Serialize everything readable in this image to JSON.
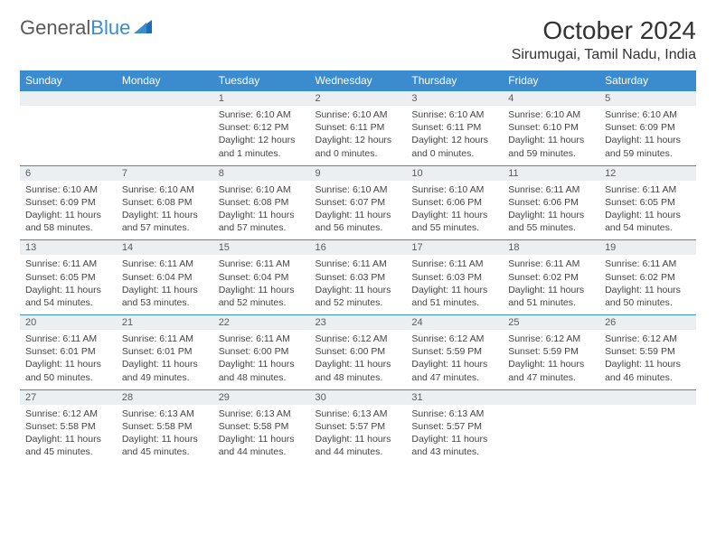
{
  "brand": {
    "part1": "General",
    "part2": "Blue"
  },
  "title": "October 2024",
  "location": "Sirumugai, Tamil Nadu, India",
  "colors": {
    "header_bg": "#3a8ccf",
    "header_text": "#ffffff",
    "daynum_bg": "#eceff1",
    "daynum_text": "#5a5a5a",
    "body_text": "#444444",
    "border": "#3a8ccf",
    "background": "#ffffff"
  },
  "typography": {
    "title_fontsize": 28,
    "location_fontsize": 16,
    "header_fontsize": 12,
    "cell_fontsize": 10.5
  },
  "day_headers": [
    "Sunday",
    "Monday",
    "Tuesday",
    "Wednesday",
    "Thursday",
    "Friday",
    "Saturday"
  ],
  "weeks": [
    [
      null,
      null,
      {
        "n": "1",
        "sr": "Sunrise: 6:10 AM",
        "ss": "Sunset: 6:12 PM",
        "dl1": "Daylight: 12 hours",
        "dl2": "and 1 minutes."
      },
      {
        "n": "2",
        "sr": "Sunrise: 6:10 AM",
        "ss": "Sunset: 6:11 PM",
        "dl1": "Daylight: 12 hours",
        "dl2": "and 0 minutes."
      },
      {
        "n": "3",
        "sr": "Sunrise: 6:10 AM",
        "ss": "Sunset: 6:11 PM",
        "dl1": "Daylight: 12 hours",
        "dl2": "and 0 minutes."
      },
      {
        "n": "4",
        "sr": "Sunrise: 6:10 AM",
        "ss": "Sunset: 6:10 PM",
        "dl1": "Daylight: 11 hours",
        "dl2": "and 59 minutes."
      },
      {
        "n": "5",
        "sr": "Sunrise: 6:10 AM",
        "ss": "Sunset: 6:09 PM",
        "dl1": "Daylight: 11 hours",
        "dl2": "and 59 minutes."
      }
    ],
    [
      {
        "n": "6",
        "sr": "Sunrise: 6:10 AM",
        "ss": "Sunset: 6:09 PM",
        "dl1": "Daylight: 11 hours",
        "dl2": "and 58 minutes."
      },
      {
        "n": "7",
        "sr": "Sunrise: 6:10 AM",
        "ss": "Sunset: 6:08 PM",
        "dl1": "Daylight: 11 hours",
        "dl2": "and 57 minutes."
      },
      {
        "n": "8",
        "sr": "Sunrise: 6:10 AM",
        "ss": "Sunset: 6:08 PM",
        "dl1": "Daylight: 11 hours",
        "dl2": "and 57 minutes."
      },
      {
        "n": "9",
        "sr": "Sunrise: 6:10 AM",
        "ss": "Sunset: 6:07 PM",
        "dl1": "Daylight: 11 hours",
        "dl2": "and 56 minutes."
      },
      {
        "n": "10",
        "sr": "Sunrise: 6:10 AM",
        "ss": "Sunset: 6:06 PM",
        "dl1": "Daylight: 11 hours",
        "dl2": "and 55 minutes."
      },
      {
        "n": "11",
        "sr": "Sunrise: 6:11 AM",
        "ss": "Sunset: 6:06 PM",
        "dl1": "Daylight: 11 hours",
        "dl2": "and 55 minutes."
      },
      {
        "n": "12",
        "sr": "Sunrise: 6:11 AM",
        "ss": "Sunset: 6:05 PM",
        "dl1": "Daylight: 11 hours",
        "dl2": "and 54 minutes."
      }
    ],
    [
      {
        "n": "13",
        "sr": "Sunrise: 6:11 AM",
        "ss": "Sunset: 6:05 PM",
        "dl1": "Daylight: 11 hours",
        "dl2": "and 54 minutes."
      },
      {
        "n": "14",
        "sr": "Sunrise: 6:11 AM",
        "ss": "Sunset: 6:04 PM",
        "dl1": "Daylight: 11 hours",
        "dl2": "and 53 minutes."
      },
      {
        "n": "15",
        "sr": "Sunrise: 6:11 AM",
        "ss": "Sunset: 6:04 PM",
        "dl1": "Daylight: 11 hours",
        "dl2": "and 52 minutes."
      },
      {
        "n": "16",
        "sr": "Sunrise: 6:11 AM",
        "ss": "Sunset: 6:03 PM",
        "dl1": "Daylight: 11 hours",
        "dl2": "and 52 minutes."
      },
      {
        "n": "17",
        "sr": "Sunrise: 6:11 AM",
        "ss": "Sunset: 6:03 PM",
        "dl1": "Daylight: 11 hours",
        "dl2": "and 51 minutes."
      },
      {
        "n": "18",
        "sr": "Sunrise: 6:11 AM",
        "ss": "Sunset: 6:02 PM",
        "dl1": "Daylight: 11 hours",
        "dl2": "and 51 minutes."
      },
      {
        "n": "19",
        "sr": "Sunrise: 6:11 AM",
        "ss": "Sunset: 6:02 PM",
        "dl1": "Daylight: 11 hours",
        "dl2": "and 50 minutes."
      }
    ],
    [
      {
        "n": "20",
        "sr": "Sunrise: 6:11 AM",
        "ss": "Sunset: 6:01 PM",
        "dl1": "Daylight: 11 hours",
        "dl2": "and 50 minutes."
      },
      {
        "n": "21",
        "sr": "Sunrise: 6:11 AM",
        "ss": "Sunset: 6:01 PM",
        "dl1": "Daylight: 11 hours",
        "dl2": "and 49 minutes."
      },
      {
        "n": "22",
        "sr": "Sunrise: 6:11 AM",
        "ss": "Sunset: 6:00 PM",
        "dl1": "Daylight: 11 hours",
        "dl2": "and 48 minutes."
      },
      {
        "n": "23",
        "sr": "Sunrise: 6:12 AM",
        "ss": "Sunset: 6:00 PM",
        "dl1": "Daylight: 11 hours",
        "dl2": "and 48 minutes."
      },
      {
        "n": "24",
        "sr": "Sunrise: 6:12 AM",
        "ss": "Sunset: 5:59 PM",
        "dl1": "Daylight: 11 hours",
        "dl2": "and 47 minutes."
      },
      {
        "n": "25",
        "sr": "Sunrise: 6:12 AM",
        "ss": "Sunset: 5:59 PM",
        "dl1": "Daylight: 11 hours",
        "dl2": "and 47 minutes."
      },
      {
        "n": "26",
        "sr": "Sunrise: 6:12 AM",
        "ss": "Sunset: 5:59 PM",
        "dl1": "Daylight: 11 hours",
        "dl2": "and 46 minutes."
      }
    ],
    [
      {
        "n": "27",
        "sr": "Sunrise: 6:12 AM",
        "ss": "Sunset: 5:58 PM",
        "dl1": "Daylight: 11 hours",
        "dl2": "and 45 minutes."
      },
      {
        "n": "28",
        "sr": "Sunrise: 6:13 AM",
        "ss": "Sunset: 5:58 PM",
        "dl1": "Daylight: 11 hours",
        "dl2": "and 45 minutes."
      },
      {
        "n": "29",
        "sr": "Sunrise: 6:13 AM",
        "ss": "Sunset: 5:58 PM",
        "dl1": "Daylight: 11 hours",
        "dl2": "and 44 minutes."
      },
      {
        "n": "30",
        "sr": "Sunrise: 6:13 AM",
        "ss": "Sunset: 5:57 PM",
        "dl1": "Daylight: 11 hours",
        "dl2": "and 44 minutes."
      },
      {
        "n": "31",
        "sr": "Sunrise: 6:13 AM",
        "ss": "Sunset: 5:57 PM",
        "dl1": "Daylight: 11 hours",
        "dl2": "and 43 minutes."
      },
      null,
      null
    ]
  ]
}
